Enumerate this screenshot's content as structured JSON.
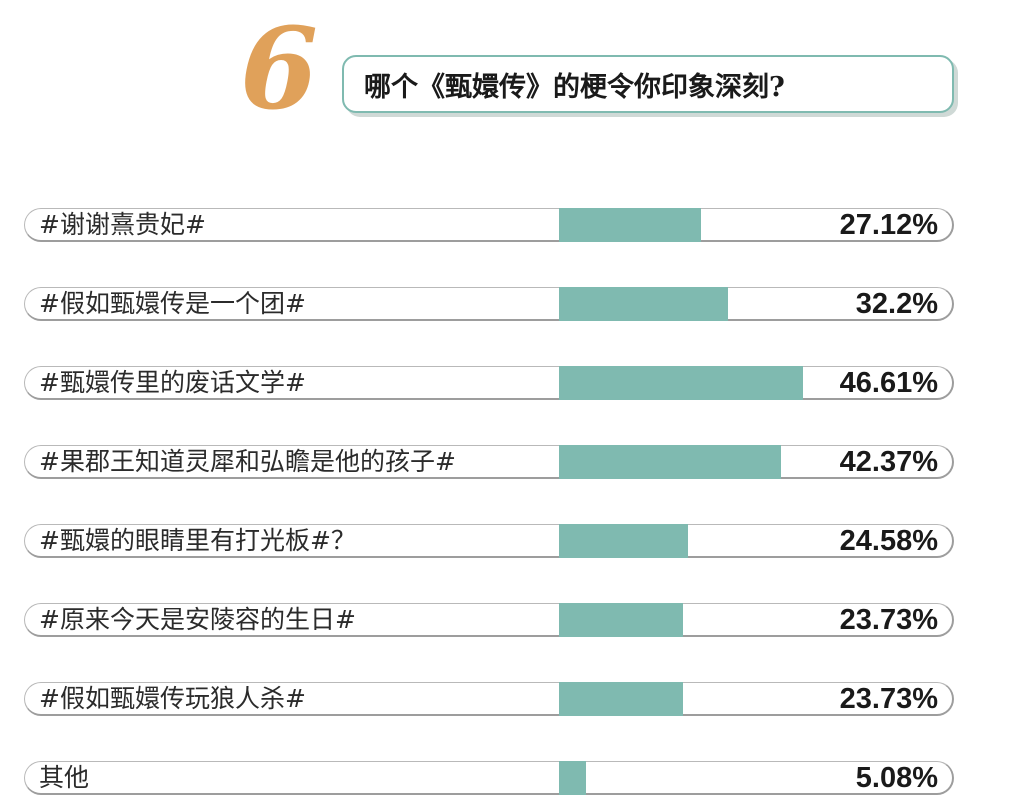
{
  "header": {
    "number": "6",
    "question": "哪个《甄嬛传》的梗令你印象深刻?"
  },
  "colors": {
    "bar": "#7fbab0",
    "number": "#e0a15a",
    "box_border": "#7fbab0"
  },
  "chart_data": {
    "type": "bar",
    "orientation": "horizontal",
    "title": "哪个《甄嬛传》的梗令你印象深刻?",
    "xlim": [
      0,
      100
    ],
    "grid": false,
    "categories": [
      "#谢谢熹贵妃#",
      "#假如甄嬛传是一个团#",
      "#甄嬛传里的废话文学#",
      "#果郡王知道灵犀和弘瞻是他的孩子#",
      "#甄嬛的眼睛里有打光板#？",
      "#原来今天是安陵容的生日#",
      "#假如甄嬛传玩狼人杀#",
      "其他"
    ],
    "values": [
      27.12,
      32.2,
      46.61,
      42.37,
      24.58,
      23.73,
      23.73,
      5.08
    ],
    "value_labels": [
      "27.12%",
      "32.2%",
      "46.61%",
      "42.37%",
      "24.58%",
      "23.73%",
      "23.73%",
      "5.08%"
    ]
  }
}
